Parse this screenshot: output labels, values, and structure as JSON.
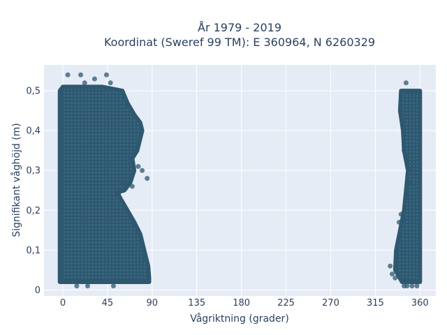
{
  "chart_data": {
    "type": "scatter",
    "title": "År 1979 - 2019",
    "subtitle": "Koordinat (Sweref 99 TM): E 360964, N 6260329",
    "xlabel": "Vågriktning (grader)",
    "ylabel": "Signifikant våghöjd (m)",
    "xlim": [
      -19,
      376
    ],
    "ylim": [
      -0.015,
      0.565
    ],
    "x_ticks": [
      0,
      45,
      90,
      135,
      180,
      225,
      270,
      315,
      360
    ],
    "x_tick_labels": [
      "0",
      "45",
      "90",
      "135",
      "180",
      "225",
      "270",
      "315",
      "360"
    ],
    "y_ticks": [
      0,
      0.1,
      0.2,
      0.3,
      0.4,
      0.5
    ],
    "y_tick_labels": [
      "0",
      "0,1",
      "0,2",
      "0,3",
      "0,4",
      "0,5"
    ],
    "grid": true,
    "legend": "none",
    "marker_color": "#2e5870",
    "plot_background": "#e5ecf6",
    "clusters": [
      {
        "x_range": [
          -3,
          87
        ],
        "y_range": [
          0.02,
          0.5
        ],
        "envelope": [
          [
            -3,
            0.5
          ],
          [
            0,
            0.51
          ],
          [
            5,
            0.51
          ],
          [
            20,
            0.51
          ],
          [
            40,
            0.51
          ],
          [
            60,
            0.5
          ],
          [
            65,
            0.47
          ],
          [
            72,
            0.44
          ],
          [
            78,
            0.42
          ],
          [
            80,
            0.4
          ],
          [
            75,
            0.35
          ],
          [
            70,
            0.33
          ],
          [
            72,
            0.3
          ],
          [
            68,
            0.27
          ],
          [
            62,
            0.25
          ],
          [
            55,
            0.245
          ],
          [
            58,
            0.23
          ],
          [
            65,
            0.2
          ],
          [
            72,
            0.17
          ],
          [
            78,
            0.14
          ],
          [
            82,
            0.1
          ],
          [
            86,
            0.06
          ],
          [
            87,
            0.03
          ],
          [
            87,
            0.02
          ],
          [
            -3,
            0.02
          ]
        ]
      },
      {
        "x_range": [
          330,
          360
        ],
        "y_range": [
          0.02,
          0.5
        ],
        "envelope": [
          [
            341,
            0.5
          ],
          [
            360,
            0.5
          ],
          [
            360,
            0.02
          ],
          [
            342,
            0.02
          ],
          [
            335,
            0.05
          ],
          [
            336,
            0.1
          ],
          [
            340,
            0.15
          ],
          [
            344,
            0.2
          ],
          [
            346,
            0.25
          ],
          [
            348,
            0.3
          ],
          [
            344,
            0.35
          ],
          [
            343,
            0.4
          ],
          [
            340,
            0.45
          ]
        ]
      }
    ],
    "outliers": [
      {
        "x": 5,
        "y": 0.54
      },
      {
        "x": 18,
        "y": 0.54
      },
      {
        "x": 44,
        "y": 0.54
      },
      {
        "x": 32,
        "y": 0.53
      },
      {
        "x": 22,
        "y": 0.52
      },
      {
        "x": 48,
        "y": 0.52
      },
      {
        "x": 85,
        "y": 0.28
      },
      {
        "x": 80,
        "y": 0.3
      },
      {
        "x": 73,
        "y": 0.35
      },
      {
        "x": 76,
        "y": 0.31
      },
      {
        "x": 70,
        "y": 0.26
      },
      {
        "x": 60,
        "y": 0.27
      },
      {
        "x": 56,
        "y": 0.24
      },
      {
        "x": 51,
        "y": 0.01
      },
      {
        "x": 14,
        "y": 0.01
      },
      {
        "x": 25,
        "y": 0.01
      },
      {
        "x": 346,
        "y": 0.52
      },
      {
        "x": 330,
        "y": 0.06
      },
      {
        "x": 332,
        "y": 0.04
      },
      {
        "x": 335,
        "y": 0.03
      },
      {
        "x": 346,
        "y": 0.34
      },
      {
        "x": 344,
        "y": 0.35
      },
      {
        "x": 350,
        "y": 0.27
      },
      {
        "x": 349,
        "y": 0.3
      },
      {
        "x": 341,
        "y": 0.19
      },
      {
        "x": 339,
        "y": 0.17
      },
      {
        "x": 344,
        "y": 0.01
      },
      {
        "x": 352,
        "y": 0.01
      },
      {
        "x": 357,
        "y": 0.01
      },
      {
        "x": 347,
        "y": 0.01
      }
    ]
  }
}
